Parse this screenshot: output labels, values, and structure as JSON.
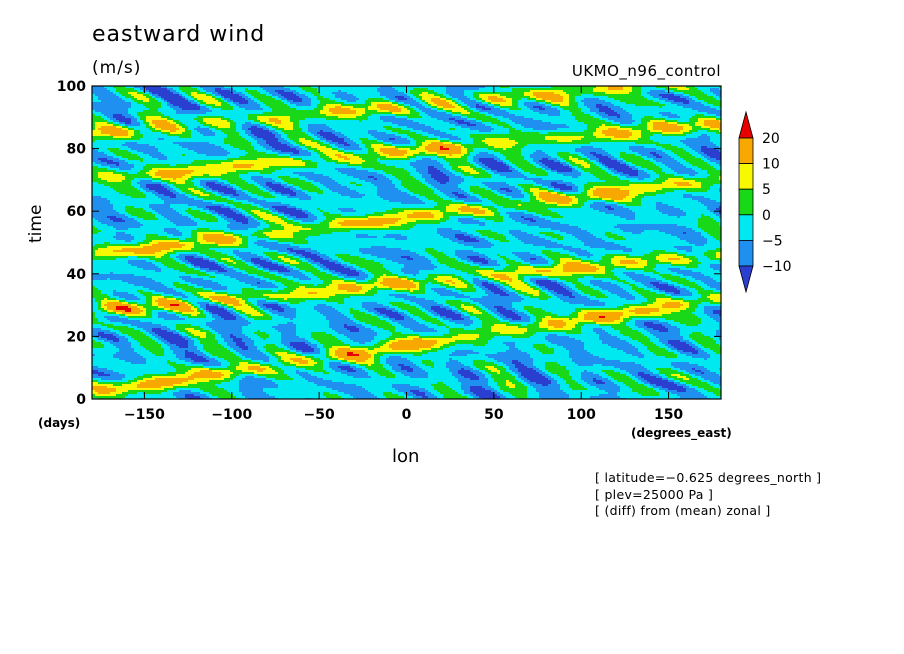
{
  "chart_data": {
    "type": "heatmap",
    "title": "eastward wind",
    "units": "(m/s)",
    "run_label": "UKMO_n96_control",
    "xlabel": "lon",
    "x_units": "(degrees_east)",
    "ylabel": "time",
    "y_units": "(days)",
    "xlim": [
      -180,
      180
    ],
    "ylim": [
      0,
      100
    ],
    "x_ticks": [
      -150,
      -100,
      -50,
      0,
      50,
      100,
      150
    ],
    "y_ticks": [
      0,
      20,
      40,
      60,
      80,
      100
    ],
    "x_tick_labels": [
      "−150",
      "−100",
      "−50",
      "0",
      "50",
      "100",
      "150"
    ],
    "y_tick_labels": [
      "0",
      "20",
      "40",
      "60",
      "80",
      "100"
    ],
    "colorbar": {
      "levels": [
        -10,
        -5,
        0,
        5,
        10,
        20
      ],
      "labels": [
        "−10",
        "−5",
        "0",
        "5",
        "10",
        "20"
      ],
      "colors": [
        "#2a3fd0",
        "#1f8ff0",
        "#00e8f0",
        "#18d818",
        "#f8f800",
        "#f8a800",
        "#e80000"
      ]
    },
    "bands": [
      {
        "lon0": -180,
        "t0": 2,
        "lon1": 180,
        "t1": 32,
        "peak": 18
      },
      {
        "lon0": -180,
        "t0": 28,
        "lon1": 180,
        "t1": 46,
        "peak": 16
      },
      {
        "lon0": -180,
        "t0": 46,
        "lon1": 180,
        "t1": 70,
        "peak": 17
      },
      {
        "lon0": -180,
        "t0": 70,
        "lon1": 180,
        "t1": 88,
        "peak": 16
      },
      {
        "lon0": -180,
        "t0": 85,
        "lon1": 180,
        "t1": 102,
        "peak": 13
      }
    ],
    "notes": [
      "[ latitude=−0.625 degrees_north ]",
      "[ plev=25000 Pa ]",
      "[ (diff) from (mean) zonal ]"
    ]
  }
}
